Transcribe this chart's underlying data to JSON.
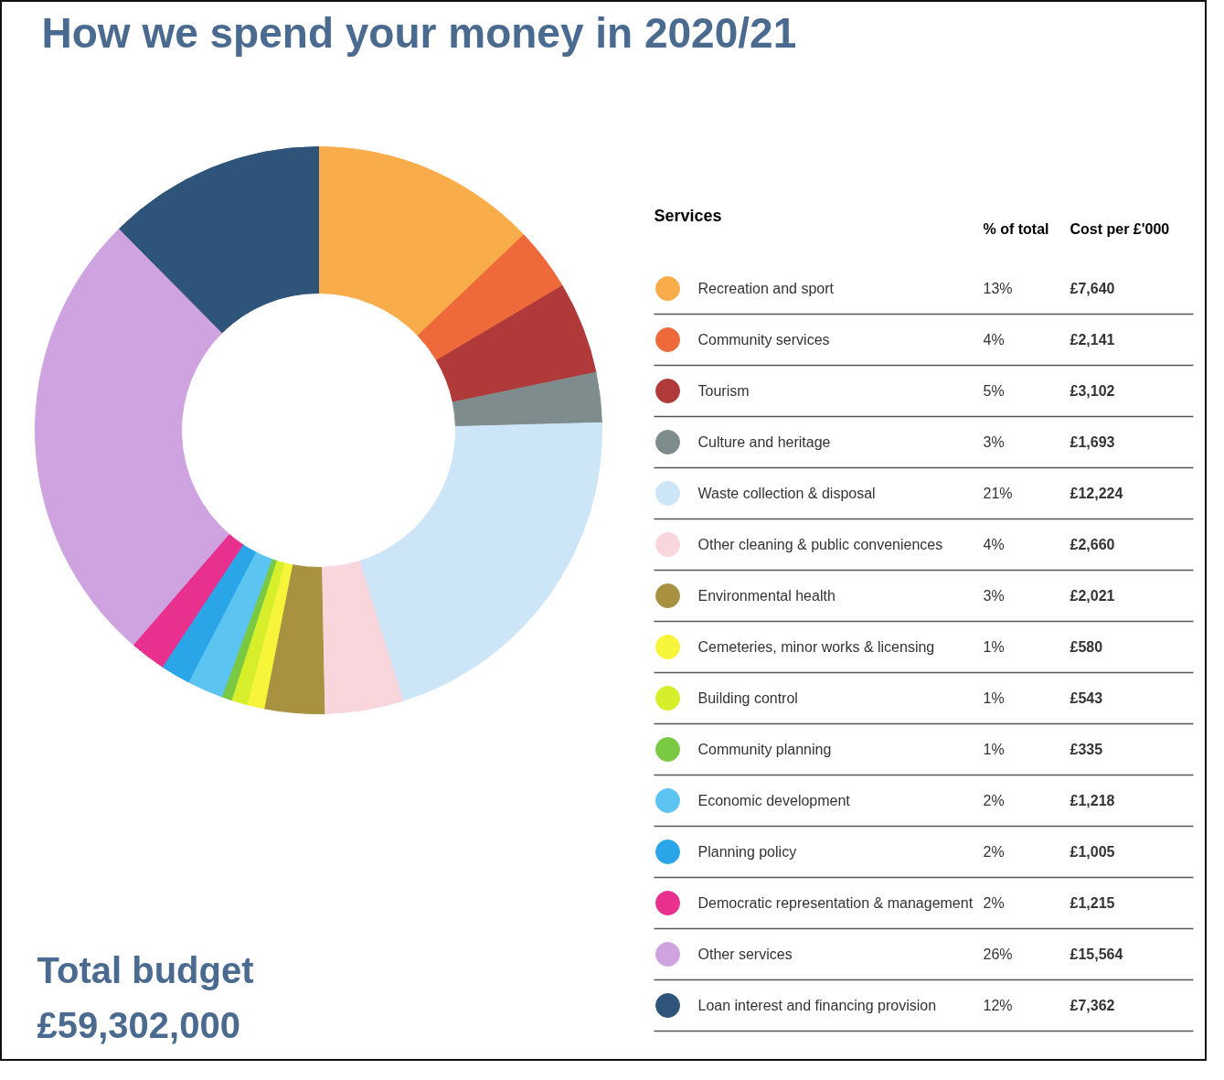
{
  "chart_data": {
    "type": "donut",
    "title": "How we spend your money in 2020/21",
    "legend_title": "Services",
    "legend": "right",
    "categories": [
      "Recreation and sport",
      "Community services",
      "Tourism",
      "Culture and heritage",
      "Waste collection & disposal",
      "Other cleaning & public conveniences",
      "Environmental health",
      "Cemeteries, minor works & licensing",
      "Building control",
      "Community planning",
      "Economic development",
      "Planning policy",
      "Democratic representation & management",
      "Other services",
      "Loan interest and financing provision"
    ],
    "values": [
      7640,
      2141,
      3102,
      1693,
      12224,
      2660,
      2021,
      580,
      543,
      335,
      1218,
      1005,
      1215,
      15564,
      7362
    ],
    "colors": [
      "#f9ad4a",
      "#ef6a3a",
      "#b03a3a",
      "#7f8c8d",
      "#cde6f7",
      "#f9d6dc",
      "#a89140",
      "#f6f53a",
      "#d6ef2a",
      "#7ac943",
      "#5bc4f1",
      "#2aa6e8",
      "#e8318f",
      "#cfa2e0",
      "#2e5479"
    ],
    "value_labels": [
      "£7,640",
      "£2,141",
      "£3,102",
      "£1,693",
      "£12,224",
      "£2,660",
      "£2,021",
      "£580",
      "£543",
      "£335",
      "£1,218",
      "£1,005",
      "£1,215",
      "£15,564",
      "£7,362"
    ],
    "annotations": [
      "% of total",
      "Cost per £'000",
      "Total budget",
      "£59,302,000",
      "13%",
      "4%",
      "5%",
      "3%",
      "21%",
      "4%",
      "3%",
      "1%",
      "1%",
      "1%",
      "2%",
      "2%",
      "2%",
      "26%",
      "12%"
    ]
  }
}
